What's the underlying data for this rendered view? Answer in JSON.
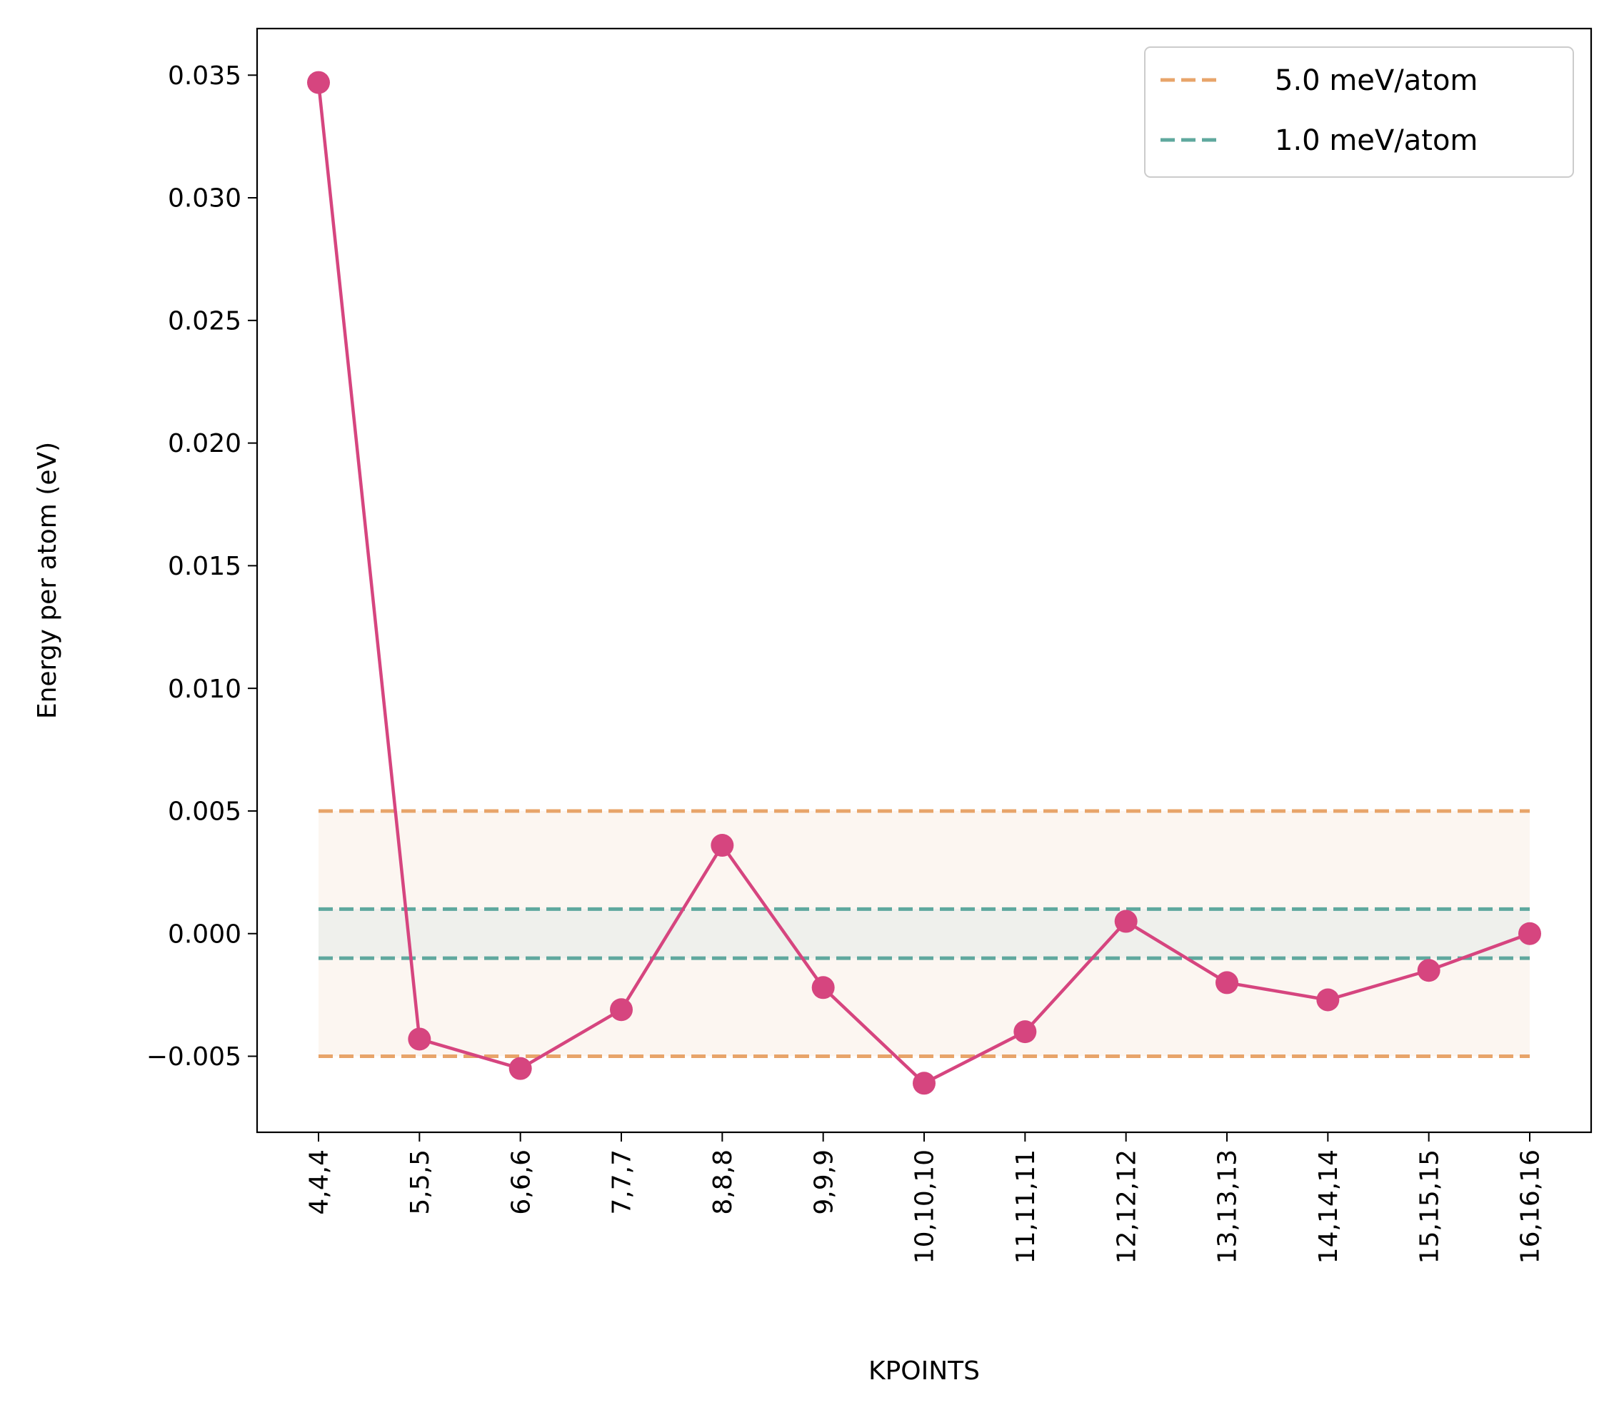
{
  "chart_data": {
    "type": "line",
    "title": "",
    "xlabel": "KPOINTS",
    "ylabel": "Energy per atom (eV)",
    "categories": [
      "4,4,4",
      "5,5,5",
      "6,6,6",
      "7,7,7",
      "8,8,8",
      "9,9,9",
      "10,10,10",
      "11,11,11",
      "12,12,12",
      "13,13,13",
      "14,14,14",
      "15,15,15",
      "16,16,16"
    ],
    "series": [
      {
        "values": [
          0.0347,
          -0.0043,
          -0.0055,
          -0.0031,
          0.0036,
          -0.0022,
          -0.0061,
          -0.004,
          0.0005,
          -0.002,
          -0.0027,
          -0.0015,
          0.0
        ],
        "color": "#d6457f",
        "marker": "circle"
      }
    ],
    "ylim": [
      -0.0081,
      0.0369
    ],
    "yticks": [
      -0.005,
      0.0,
      0.005,
      0.01,
      0.015,
      0.02,
      0.025,
      0.03,
      0.035
    ],
    "ytick_labels": [
      "−0.005",
      "0.000",
      "0.005",
      "0.010",
      "0.015",
      "0.020",
      "0.025",
      "0.030",
      "0.035"
    ],
    "tolerance_bands": [
      {
        "label": "5.0 meV/atom",
        "value": 0.005,
        "color": "#e8a46a",
        "fill": "#fcf6f1"
      },
      {
        "label": "1.0 meV/atom",
        "value": 0.001,
        "color": "#5fa89e",
        "fill": "#eff0ec"
      }
    ],
    "legend": {
      "position": "top-right"
    },
    "grid": false
  }
}
